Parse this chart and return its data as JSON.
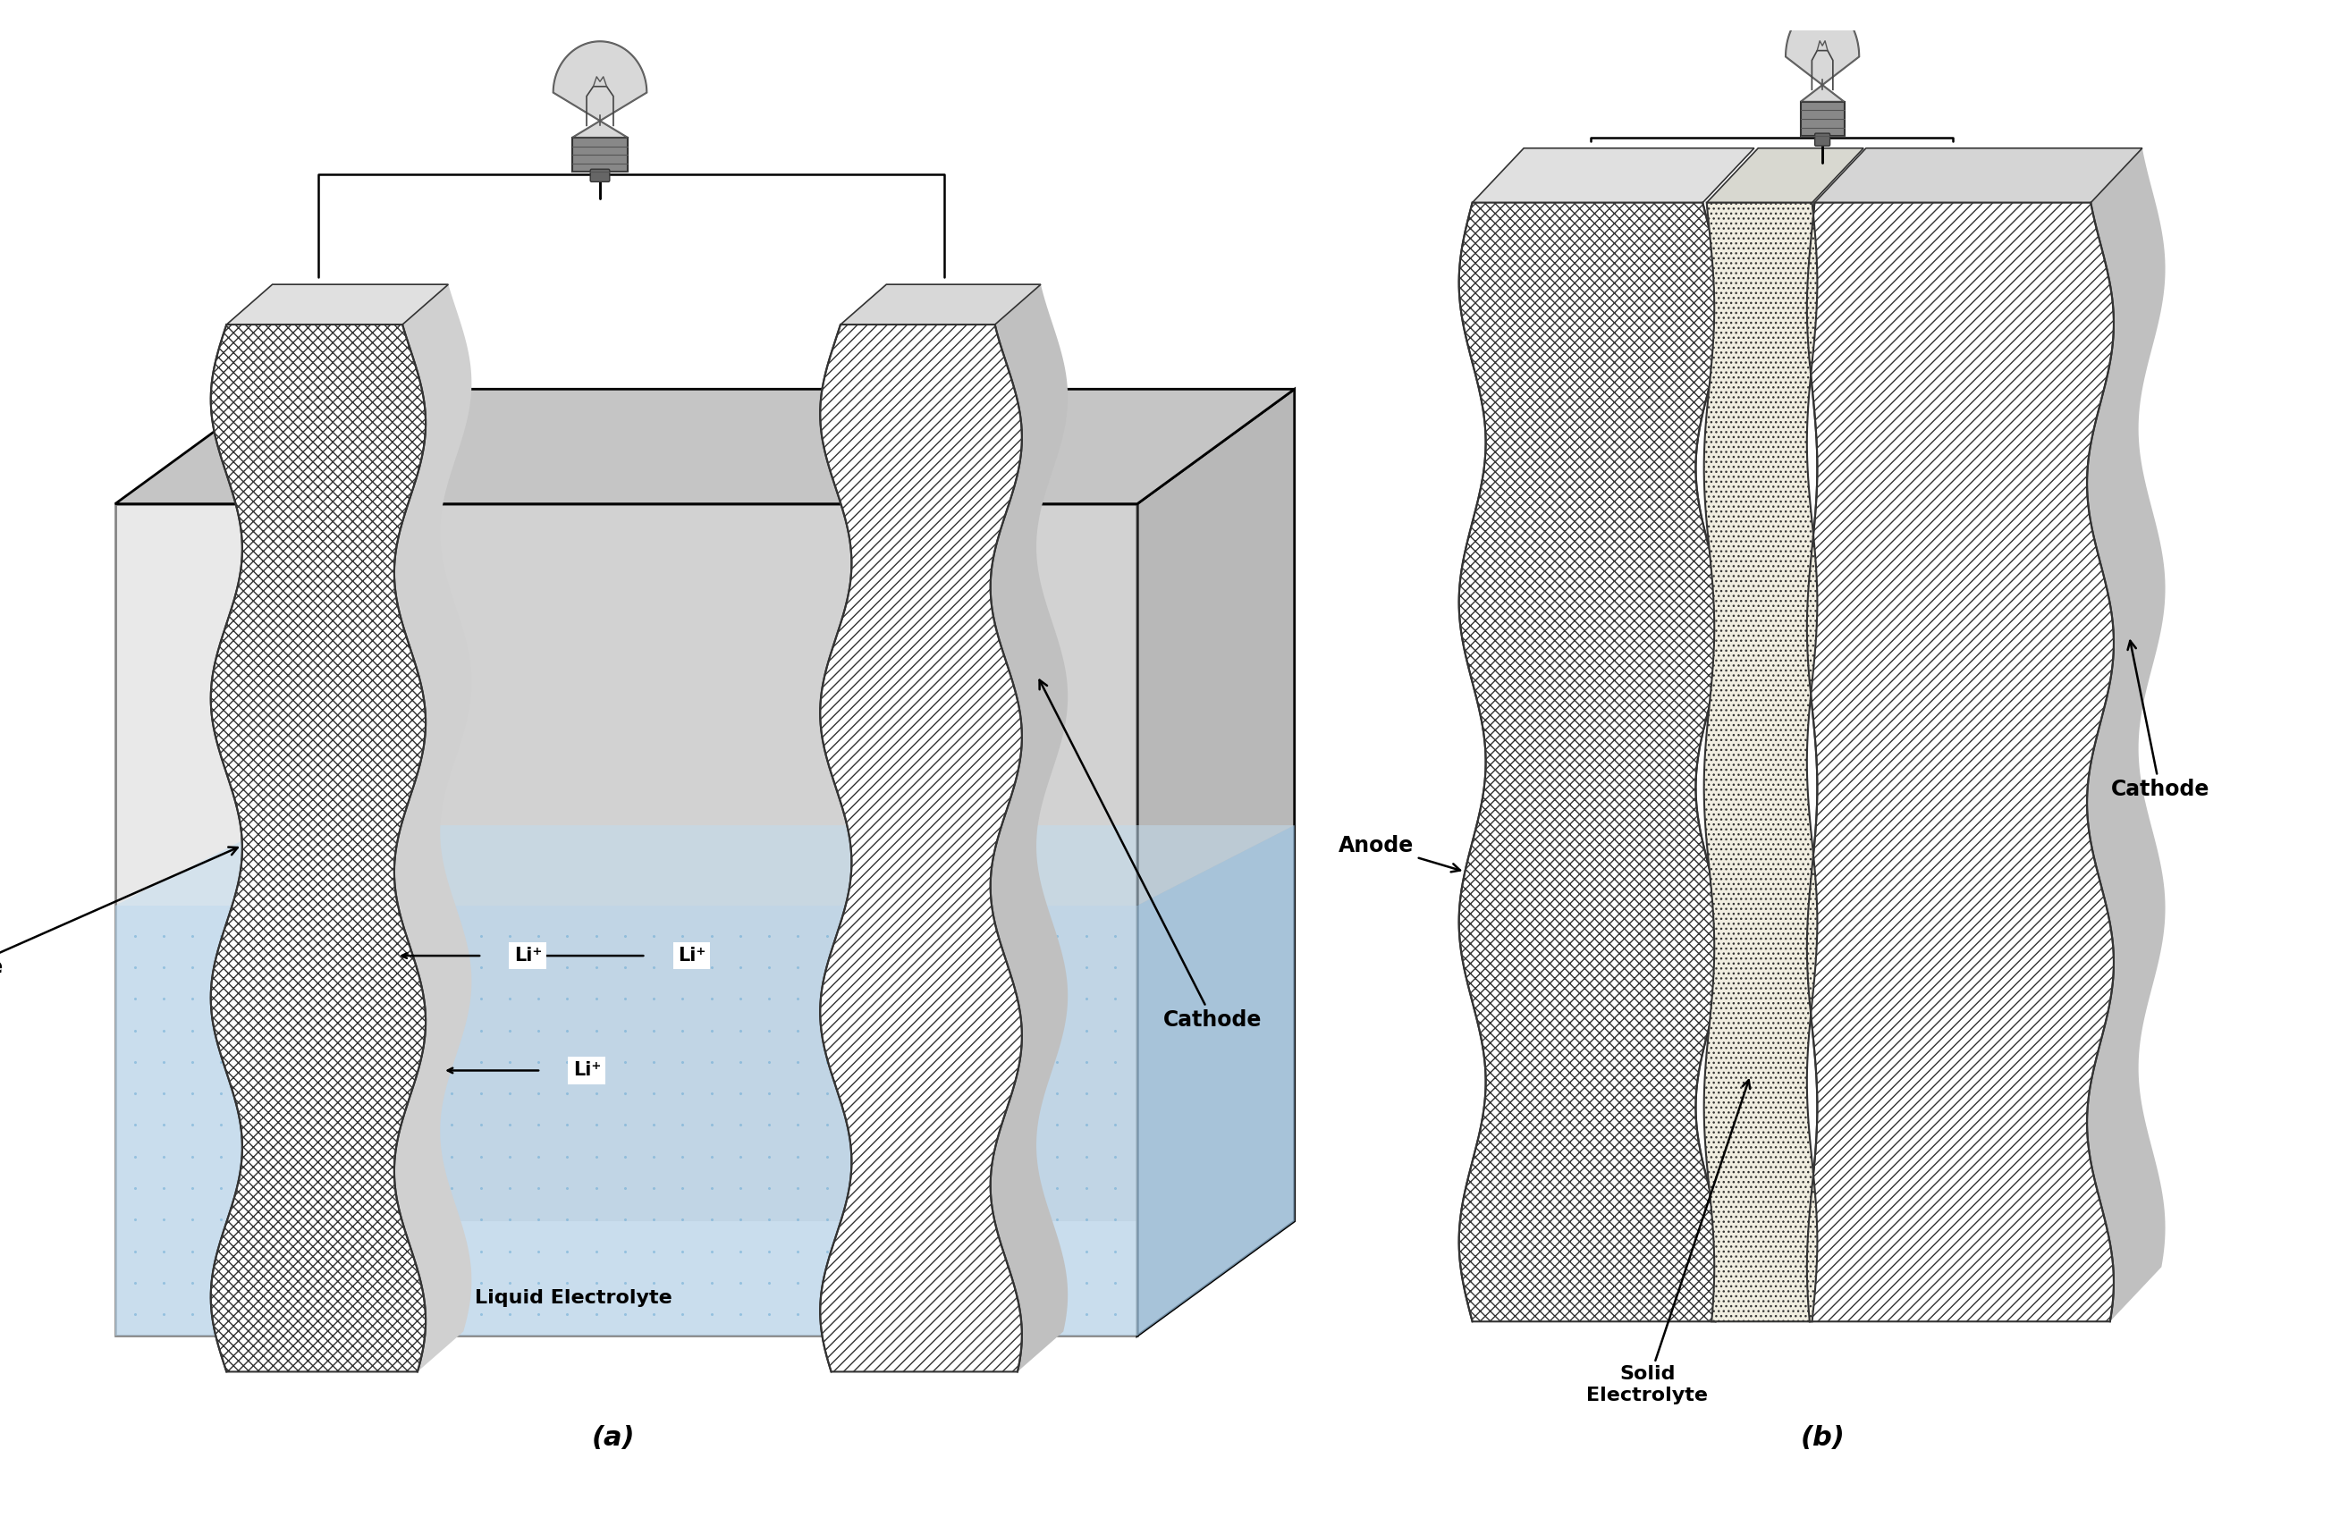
{
  "fig_width": 26.17,
  "fig_height": 17.07,
  "bg_color": "#ffffff",
  "label_a": "(a)",
  "label_b": "(b)",
  "panel_a": {
    "tank_face_color": "#c8c8c8",
    "tank_side_color": "#aaaaaa",
    "tank_top_color": "#bbbbbb",
    "liquid_color": "#b8d8f0",
    "liquid_dot_color": "#6aaad4",
    "anode_label": "Anode",
    "cathode_label": "Cathode",
    "electrolyte_label": "Liquid Electrolyte"
  },
  "panel_b": {
    "anode_label": "Anode",
    "cathode_label": "Cathode",
    "electrolyte_label": "Solid\nElectrolyte"
  }
}
